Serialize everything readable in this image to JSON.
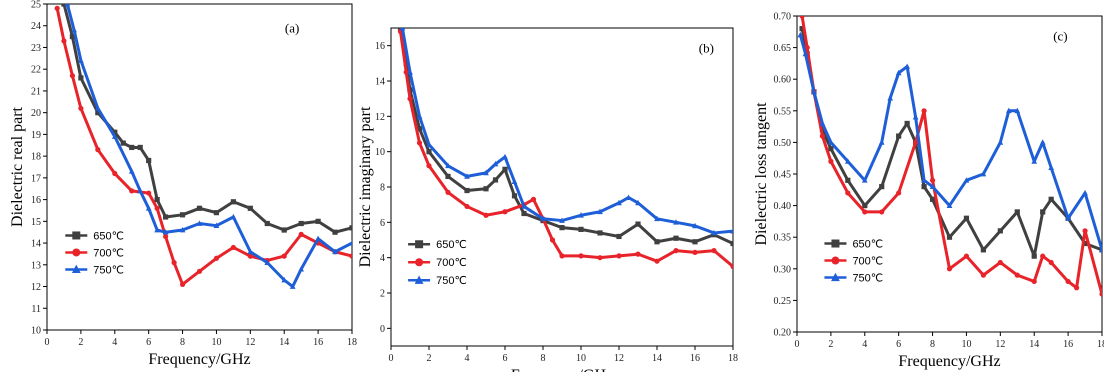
{
  "chart_data": [
    {
      "type": "line",
      "panel": "(a)",
      "xlabel": "Frequency/GHz",
      "ylabel": "Dielectric real part",
      "xlim": [
        0,
        18
      ],
      "ylim": [
        10,
        25
      ],
      "xticks": [
        0,
        2,
        4,
        6,
        8,
        10,
        12,
        14,
        16,
        18
      ],
      "yticks": [
        10,
        11,
        12,
        13,
        14,
        15,
        16,
        17,
        18,
        19,
        20,
        21,
        22,
        23,
        24,
        25
      ],
      "legend": "bottom-left",
      "series": [
        {
          "name": "650℃",
          "color": "#404040",
          "marker": "square",
          "x": [
            1,
            1.5,
            2,
            3,
            4,
            4.5,
            5,
            5.5,
            6,
            6.5,
            7,
            8,
            9,
            10,
            11,
            12,
            13,
            14,
            15,
            16,
            17,
            18
          ],
          "y": [
            25,
            23.5,
            21.6,
            20,
            19.1,
            18.6,
            18.4,
            18.4,
            17.8,
            16,
            15.2,
            15.3,
            15.6,
            15.4,
            15.9,
            15.6,
            14.9,
            14.6,
            14.9,
            15,
            14.5,
            14.7
          ]
        },
        {
          "name": "700℃",
          "color": "#e8232a",
          "marker": "circle",
          "x": [
            0.6,
            1,
            1.5,
            2,
            3,
            4,
            5,
            6,
            6.5,
            7,
            7.5,
            8,
            9,
            10,
            11,
            12,
            13,
            14,
            15,
            16,
            17,
            18
          ],
          "y": [
            24.8,
            23.3,
            21.7,
            20.2,
            18.3,
            17.2,
            16.4,
            16.3,
            15.6,
            14.3,
            13.1,
            12.1,
            12.7,
            13.3,
            13.8,
            13.4,
            13.2,
            13.4,
            14.4,
            14,
            13.6,
            13.4
          ]
        },
        {
          "name": "750℃",
          "color": "#1e5fd8",
          "marker": "triangle",
          "x": [
            1.2,
            1.6,
            2,
            3,
            4,
            5,
            5.5,
            6,
            6.5,
            7,
            8,
            9,
            10,
            11,
            12,
            13,
            14,
            14.5,
            15,
            16,
            17,
            18
          ],
          "y": [
            25,
            23.8,
            22.4,
            20.2,
            18.9,
            17.3,
            16.4,
            15.6,
            14.6,
            14.5,
            14.6,
            14.9,
            14.8,
            15.2,
            13.6,
            13.1,
            12.3,
            12,
            12.8,
            14.2,
            13.6,
            14
          ]
        }
      ]
    },
    {
      "type": "line",
      "panel": "(b)",
      "xlabel": "Frequency/GHz",
      "ylabel": "Dielectric imaginary part",
      "xlim": [
        0,
        18
      ],
      "ylim": [
        -1,
        17
      ],
      "xticks": [
        0,
        2,
        4,
        6,
        8,
        10,
        12,
        14,
        16,
        18
      ],
      "yticks": [
        0,
        2,
        4,
        6,
        8,
        10,
        12,
        14,
        16
      ],
      "legend": "bottom-left",
      "series": [
        {
          "name": "650℃",
          "color": "#404040",
          "marker": "square",
          "x": [
            0.5,
            0.8,
            1,
            1.5,
            2,
            3,
            4,
            5,
            5.5,
            6,
            6.5,
            7,
            8,
            9,
            10,
            11,
            12,
            13,
            14,
            15,
            16,
            17,
            18
          ],
          "y": [
            17,
            15,
            13.5,
            11.3,
            10,
            8.6,
            7.8,
            7.9,
            8.4,
            9,
            7.5,
            6.5,
            6.1,
            5.7,
            5.6,
            5.4,
            5.2,
            5.9,
            4.9,
            5.1,
            4.9,
            5.3,
            4.8
          ]
        },
        {
          "name": "700℃",
          "color": "#e8232a",
          "marker": "circle",
          "x": [
            0.5,
            0.8,
            1,
            1.5,
            2,
            3,
            4,
            5,
            6,
            7,
            7.5,
            8,
            8.5,
            9,
            10,
            11,
            12,
            13,
            14,
            15,
            16,
            17,
            18
          ],
          "y": [
            16.8,
            14.5,
            13,
            10.5,
            9.2,
            7.7,
            6.9,
            6.4,
            6.6,
            7,
            7.3,
            6.2,
            5,
            4.1,
            4.1,
            4,
            4.1,
            4.2,
            3.8,
            4.4,
            4.3,
            4.4,
            3.5
          ]
        },
        {
          "name": "750℃",
          "color": "#1e5fd8",
          "marker": "triangle",
          "x": [
            0.6,
            1,
            1.5,
            2,
            3,
            4,
            5,
            5.5,
            6,
            6.5,
            7,
            8,
            9,
            10,
            11,
            12,
            12.5,
            13,
            14,
            15,
            16,
            17,
            18
          ],
          "y": [
            17,
            14.5,
            12,
            10.4,
            9.2,
            8.6,
            8.8,
            9.3,
            9.7,
            8.3,
            6.9,
            6.2,
            6.1,
            6.4,
            6.6,
            7.1,
            7.4,
            7.1,
            6.2,
            6,
            5.8,
            5.4,
            5.5
          ]
        }
      ]
    },
    {
      "type": "line",
      "panel": "(c)",
      "xlabel": "Frequency/GHz",
      "ylabel": "Dielectric loss tangent",
      "xlim": [
        0,
        18
      ],
      "ylim": [
        0.2,
        0.7
      ],
      "xticks": [
        0,
        2,
        4,
        6,
        8,
        10,
        12,
        14,
        16,
        18
      ],
      "xtick_labels": [
        "0",
        "2",
        "4",
        "6",
        "8",
        "10",
        "12",
        "14",
        "16",
        "18"
      ],
      "yticks": [
        0.2,
        0.25,
        0.3,
        0.35,
        0.4,
        0.45,
        0.5,
        0.55,
        0.6,
        0.65,
        0.7
      ],
      "ytick_labels": [
        "0.20",
        "0.25",
        "0.30",
        "0.35",
        "0.40",
        "0.45",
        "0.50",
        "0.55",
        "0.60",
        "0.65",
        "0.70"
      ],
      "legend": "bottom-left",
      "series": [
        {
          "name": "650℃",
          "color": "#404040",
          "marker": "square",
          "x": [
            0.3,
            0.6,
            1,
            1.5,
            2,
            3,
            4,
            5,
            6,
            6.5,
            7,
            7.5,
            8,
            9,
            10,
            11,
            12,
            13,
            14,
            14.5,
            15,
            16,
            17,
            18
          ],
          "y": [
            0.68,
            0.64,
            0.58,
            0.52,
            0.49,
            0.44,
            0.4,
            0.43,
            0.51,
            0.53,
            0.5,
            0.43,
            0.41,
            0.35,
            0.38,
            0.33,
            0.36,
            0.39,
            0.32,
            0.39,
            0.41,
            0.38,
            0.34,
            0.33
          ]
        },
        {
          "name": "700℃",
          "color": "#e8232a",
          "marker": "circle",
          "x": [
            0.3,
            0.6,
            1,
            1.5,
            2,
            3,
            4,
            5,
            6,
            7,
            7.5,
            8,
            9,
            10,
            11,
            12,
            13,
            14,
            14.5,
            15,
            16,
            16.5,
            17,
            18
          ],
          "y": [
            0.7,
            0.65,
            0.58,
            0.51,
            0.47,
            0.42,
            0.39,
            0.39,
            0.42,
            0.5,
            0.55,
            0.44,
            0.3,
            0.32,
            0.29,
            0.31,
            0.29,
            0.28,
            0.32,
            0.31,
            0.28,
            0.27,
            0.36,
            0.26
          ]
        },
        {
          "name": "750℃",
          "color": "#1e5fd8",
          "marker": "triangle",
          "x": [
            0.2,
            0.5,
            1,
            1.5,
            2,
            3,
            4,
            5,
            5.5,
            6,
            6.5,
            7,
            7.5,
            8,
            9,
            10,
            11,
            12,
            12.5,
            13,
            14,
            14.5,
            15,
            16,
            17,
            18
          ],
          "y": [
            0.67,
            0.64,
            0.58,
            0.53,
            0.5,
            0.47,
            0.44,
            0.5,
            0.57,
            0.61,
            0.62,
            0.54,
            0.44,
            0.43,
            0.4,
            0.44,
            0.45,
            0.5,
            0.55,
            0.55,
            0.47,
            0.5,
            0.46,
            0.38,
            0.42,
            0.33
          ]
        }
      ]
    }
  ]
}
